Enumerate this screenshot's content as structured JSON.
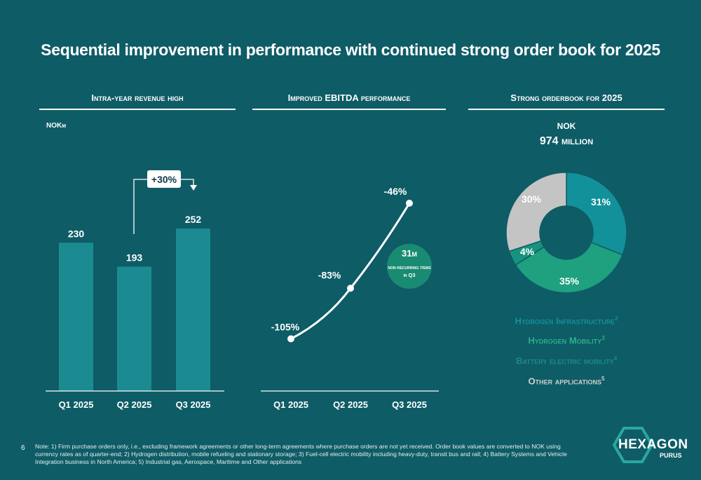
{
  "title": "Sequential improvement in performance with continued strong order book for 2025",
  "panels": {
    "revenue": {
      "title": "Intra-year revenue high",
      "unit": "NOKm",
      "change_label": "+30%"
    },
    "ebitda": {
      "title": "Improved EBITDA performance",
      "badge_value": "31m",
      "badge_text": "non-recurring items in Q3"
    },
    "orderbook": {
      "title": "Strong orderbook for 2025",
      "currency": "NOK",
      "total": "974 million"
    }
  },
  "chart_data": [
    {
      "type": "bar",
      "title": "Intra-year revenue high",
      "ylabel": "NOKm",
      "categories": [
        "Q1 2025",
        "Q2 2025",
        "Q3 2025"
      ],
      "values": [
        230,
        193,
        252
      ],
      "labels": [
        "230",
        "193",
        "252"
      ],
      "annotation": "+30%",
      "ylim": [
        0,
        300
      ]
    },
    {
      "type": "line",
      "title": "Improved EBITDA performance",
      "categories": [
        "Q1 2025",
        "Q2 2025",
        "Q3 2025"
      ],
      "values": [
        -105,
        -83,
        -46
      ],
      "labels": [
        "-105%",
        "-83%",
        "-46%"
      ]
    },
    {
      "type": "pie",
      "title": "Strong orderbook for 2025",
      "slices": [
        {
          "name": "Hydrogen Infrastructure",
          "sup": "2",
          "value": 31,
          "label": "31%",
          "color": "#12919a"
        },
        {
          "name": "Hydrogen Mobility",
          "sup": "3",
          "value": 35,
          "label": "35%",
          "color": "#1fa07f"
        },
        {
          "name": "Battery electric mobility",
          "sup": "4",
          "value": 4,
          "label": "4%",
          "color": "#17927e"
        },
        {
          "name": "Other applications",
          "sup": "5",
          "value": 30,
          "label": "30%",
          "color": "#c4c4c4"
        }
      ]
    }
  ],
  "legend": [
    {
      "name": "Hydrogen Infrastructure",
      "sup": "2",
      "color": "#12919a"
    },
    {
      "name": "Hydrogen Mobility",
      "sup": "3",
      "color": "#2cb089"
    },
    {
      "name": "Battery electric mobility",
      "sup": "4",
      "color": "#1c8c7e"
    },
    {
      "name": "Other applications",
      "sup": "5",
      "color": "#d0d0d0"
    }
  ],
  "footnote": "Note: 1) Firm purchase orders only, i.e., excluding framework agreements or other long-term agreements where purchase orders are not yet received. Order book values are converted to NOK using currency rates as of quarter-end; 2) Hydrogen distribution, mobile refueling and stationary storage; 3) Fuel-cell electric mobility including heavy-duty, transit bus and rail; 4) Battery Systems and Vehicle Integration business in North America; 5) Industrial gas, Aerospace, Maritime and Other applications",
  "page_number": "6",
  "logo": {
    "name": "HEXAGON",
    "sub": "PURUS"
  },
  "colors": {
    "background": "#0e5c66",
    "bar": "#1b8b91",
    "badge": "#1a8b73"
  }
}
